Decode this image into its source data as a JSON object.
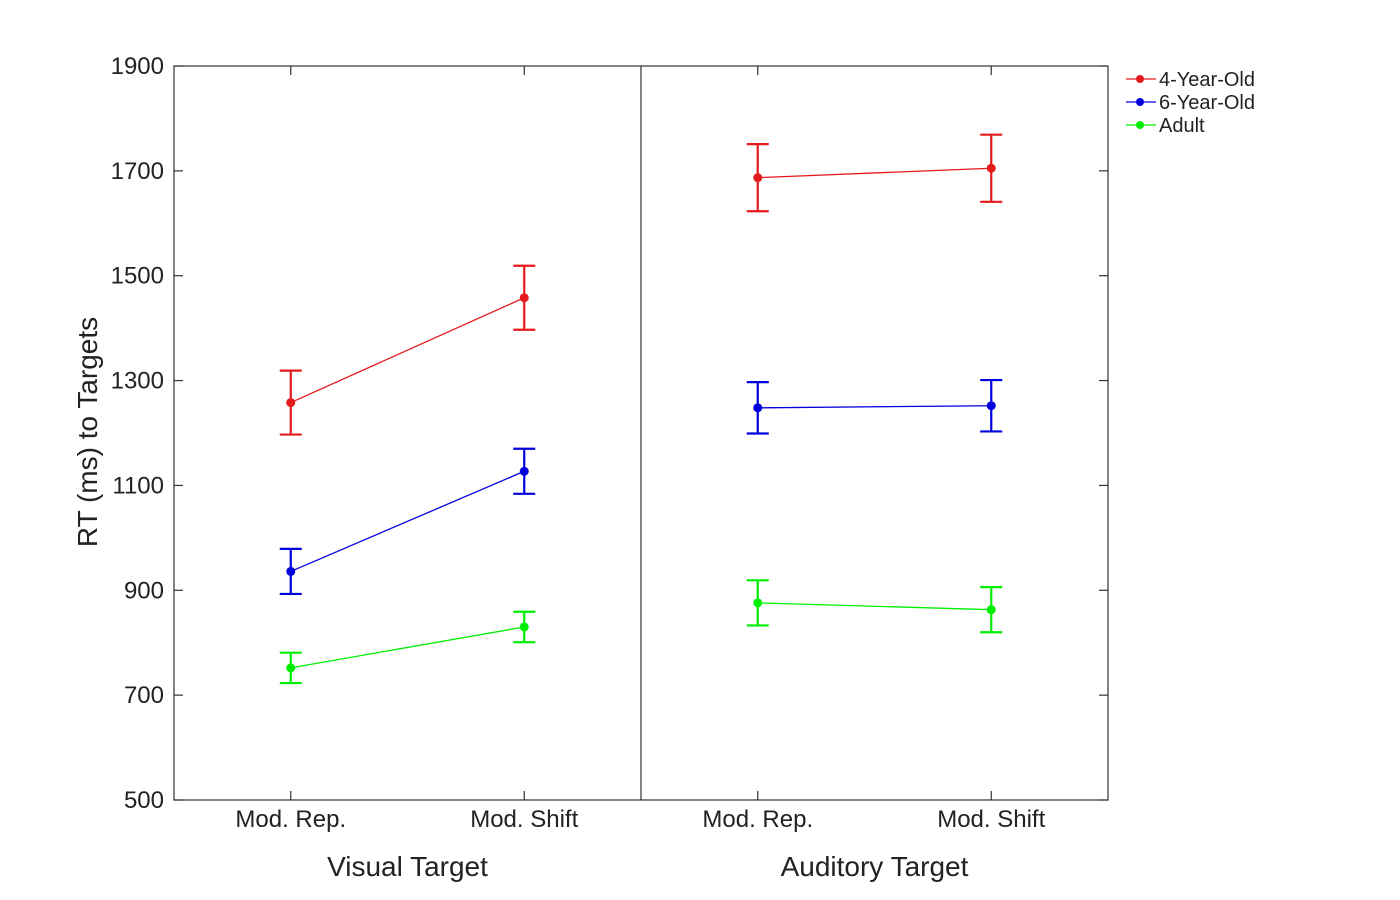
{
  "chart_data": {
    "type": "line",
    "title": "",
    "ylabel": "RT (ms) to Targets",
    "ylim": [
      500,
      1900
    ],
    "yticks": [
      500,
      700,
      900,
      1100,
      1300,
      1500,
      1700,
      1900
    ],
    "grid": false,
    "legend_position": "top-right outside",
    "groups": [
      {
        "label": "Visual Target",
        "categories": [
          "Mod. Rep.",
          "Mod. Shift"
        ]
      },
      {
        "label": "Auditory Target",
        "categories": [
          "Mod. Rep.",
          "Mod. Shift"
        ]
      }
    ],
    "series": [
      {
        "name": "4-Year-Old",
        "color": "#e41a1c",
        "values": [
          [
            1258,
            1458
          ],
          [
            1687,
            1705
          ]
        ],
        "error": [
          [
            61,
            61
          ],
          [
            64,
            64
          ]
        ]
      },
      {
        "name": "6-Year-Old",
        "color": "#0000dd",
        "values": [
          [
            936,
            1127
          ],
          [
            1248,
            1252
          ]
        ],
        "error": [
          [
            43,
            43
          ],
          [
            49,
            49
          ]
        ]
      },
      {
        "name": "Adult",
        "color": "#00ee00",
        "values": [
          [
            752,
            830
          ],
          [
            876,
            863
          ]
        ],
        "error": [
          [
            29,
            29
          ],
          [
            43,
            43
          ]
        ]
      }
    ]
  }
}
